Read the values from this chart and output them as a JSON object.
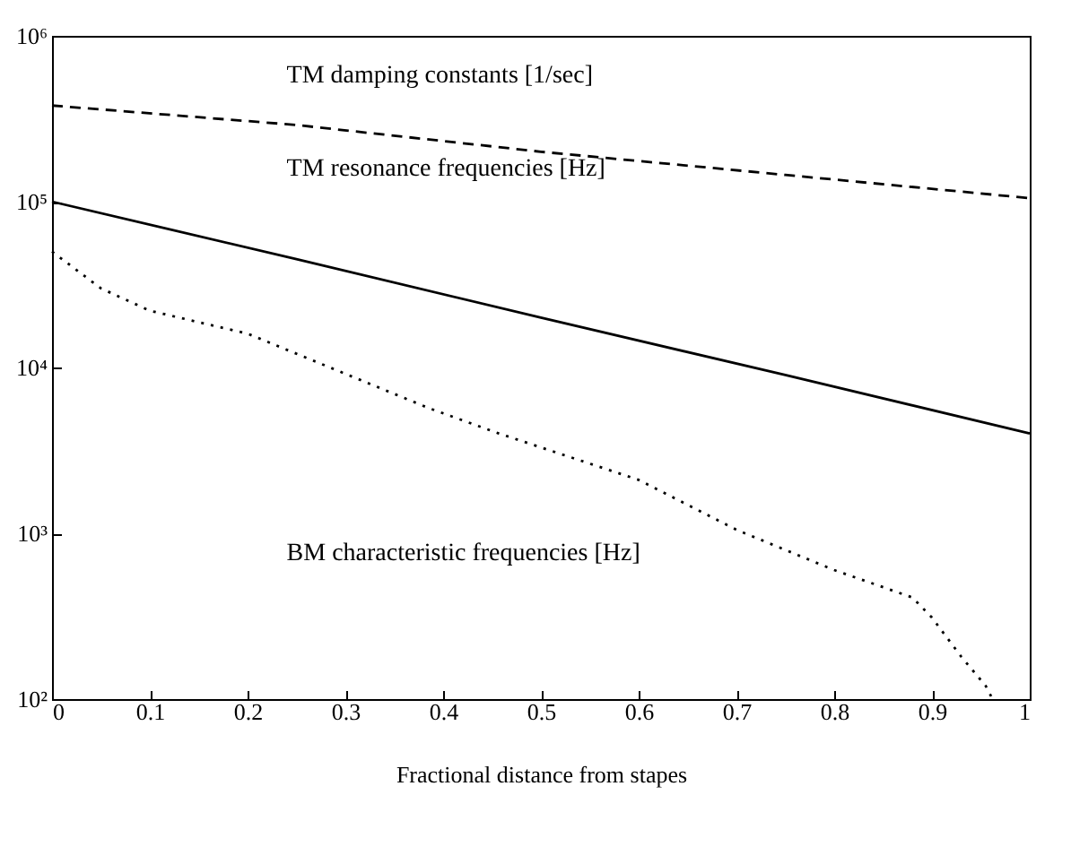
{
  "chart_data": {
    "type": "line",
    "xlabel": "Fractional distance from stapes",
    "log": "y",
    "grid": false,
    "xlim": [
      0,
      1
    ],
    "xticks": [
      0,
      0.1,
      0.2,
      0.3,
      0.4,
      0.5,
      0.6,
      0.7,
      0.8,
      0.9,
      1
    ],
    "ylim": [
      100,
      1000000
    ],
    "yticks": [
      {
        "value": 100,
        "label": "10²"
      },
      {
        "value": 1000,
        "label": "10³"
      },
      {
        "value": 10000,
        "label": "10⁴"
      },
      {
        "value": 100000,
        "label": "10⁵"
      },
      {
        "value": 1000000,
        "label": "10⁶"
      }
    ],
    "annotations": [
      "TM damping constants [1/sec]",
      "TM resonance frequencies [Hz]",
      "BM characteristic frequencies [Hz]"
    ],
    "series": [
      {
        "color": "#000000",
        "line_style": "dashed",
        "x": [
          0,
          0.25,
          0.5,
          0.75,
          1
        ],
        "values": [
          380000,
          290000,
          200000,
          145000,
          105000
        ]
      },
      {
        "color": "#000000",
        "line_style": "solid",
        "x": [
          0,
          0.25,
          0.5,
          0.75,
          1
        ],
        "values": [
          100000,
          45000,
          20000,
          9000,
          4000
        ]
      },
      {
        "color": "#000000",
        "line_style": "dotted",
        "x": [
          0,
          0.05,
          0.1,
          0.2,
          0.385,
          0.457,
          0.6,
          0.7,
          0.8,
          0.88,
          0.9,
          0.93,
          0.955,
          0.962
        ],
        "values": [
          50000,
          30000,
          22000,
          16000,
          5700,
          4000,
          2100,
          1050,
          600,
          410,
          310,
          180,
          120,
          100
        ]
      }
    ]
  }
}
